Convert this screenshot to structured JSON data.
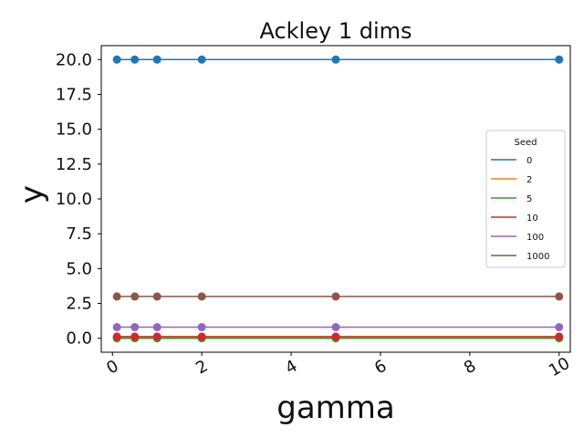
{
  "chart_data": {
    "type": "line",
    "title": "Ackley 1 dims",
    "xlabel": "gamma",
    "ylabel": "y",
    "xlim": [
      -0.25,
      10.25
    ],
    "ylim": [
      -1.0,
      21.0
    ],
    "xticks": [
      0,
      2,
      4,
      6,
      8,
      10
    ],
    "xtick_labels": [
      "0",
      "2",
      "4",
      "6",
      "8",
      "10"
    ],
    "yticks": [
      0.0,
      2.5,
      5.0,
      7.5,
      10.0,
      12.5,
      15.0,
      17.5,
      20.0
    ],
    "ytick_labels": [
      "0.0",
      "2.5",
      "5.0",
      "7.5",
      "10.0",
      "12.5",
      "15.0",
      "17.5",
      "20.0"
    ],
    "x": [
      0.1,
      0.5,
      1,
      2,
      5,
      10
    ],
    "grid": false,
    "legend": {
      "title": "Seed",
      "placement": "center-right"
    },
    "series": [
      {
        "name": "0",
        "color": "#1f77b4",
        "values": [
          20.0,
          20.0,
          20.0,
          20.0,
          20.0,
          20.0
        ]
      },
      {
        "name": "2",
        "color": "#ff7f0e",
        "values": [
          0.05,
          0.05,
          0.05,
          0.05,
          0.05,
          0.05
        ]
      },
      {
        "name": "5",
        "color": "#2ca02c",
        "values": [
          0.0,
          0.0,
          0.0,
          0.0,
          0.0,
          0.0
        ]
      },
      {
        "name": "10",
        "color": "#d62728",
        "values": [
          0.12,
          0.12,
          0.12,
          0.12,
          0.12,
          0.12
        ]
      },
      {
        "name": "100",
        "color": "#9467bd",
        "values": [
          0.8,
          0.8,
          0.8,
          0.8,
          0.8,
          0.8
        ]
      },
      {
        "name": "1000",
        "color": "#8c564b",
        "values": [
          3.0,
          3.0,
          3.0,
          3.0,
          3.0,
          3.0
        ]
      }
    ]
  }
}
